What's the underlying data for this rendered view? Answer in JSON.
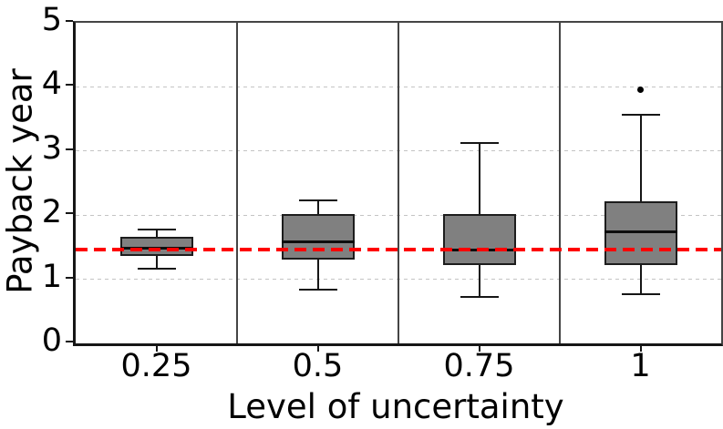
{
  "chart_data": {
    "type": "boxplot",
    "title": "",
    "xlabel": "Level of uncertainty",
    "ylabel": "Payback year",
    "ylim": [
      0,
      5
    ],
    "yticks": [
      "0",
      "1",
      "2",
      "3",
      "4",
      "5"
    ],
    "categories": [
      "0.25",
      "0.5",
      "0.75",
      "1"
    ],
    "grid": "horizontal-dashed",
    "legend": "none",
    "panels": 4,
    "box_fill_color": "#808080",
    "box_edge_color": "#1d1d1d",
    "reference_line": {
      "y": 1.47,
      "color": "#ff0000",
      "style": "dashed"
    },
    "series": [
      {
        "category": "0.25",
        "whislo": 1.16,
        "q1": 1.36,
        "med": 1.48,
        "q3": 1.66,
        "whishi": 1.78,
        "fliers": []
      },
      {
        "category": "0.5",
        "whislo": 0.84,
        "q1": 1.31,
        "med": 1.59,
        "q3": 2.01,
        "whishi": 2.23,
        "fliers": []
      },
      {
        "category": "0.75",
        "whislo": 0.73,
        "q1": 1.22,
        "med": 1.46,
        "q3": 2.01,
        "whishi": 3.13,
        "fliers": []
      },
      {
        "category": "1",
        "whislo": 0.77,
        "q1": 1.22,
        "med": 1.74,
        "q3": 2.22,
        "whishi": 3.56,
        "fliers": [
          3.95
        ]
      }
    ]
  }
}
